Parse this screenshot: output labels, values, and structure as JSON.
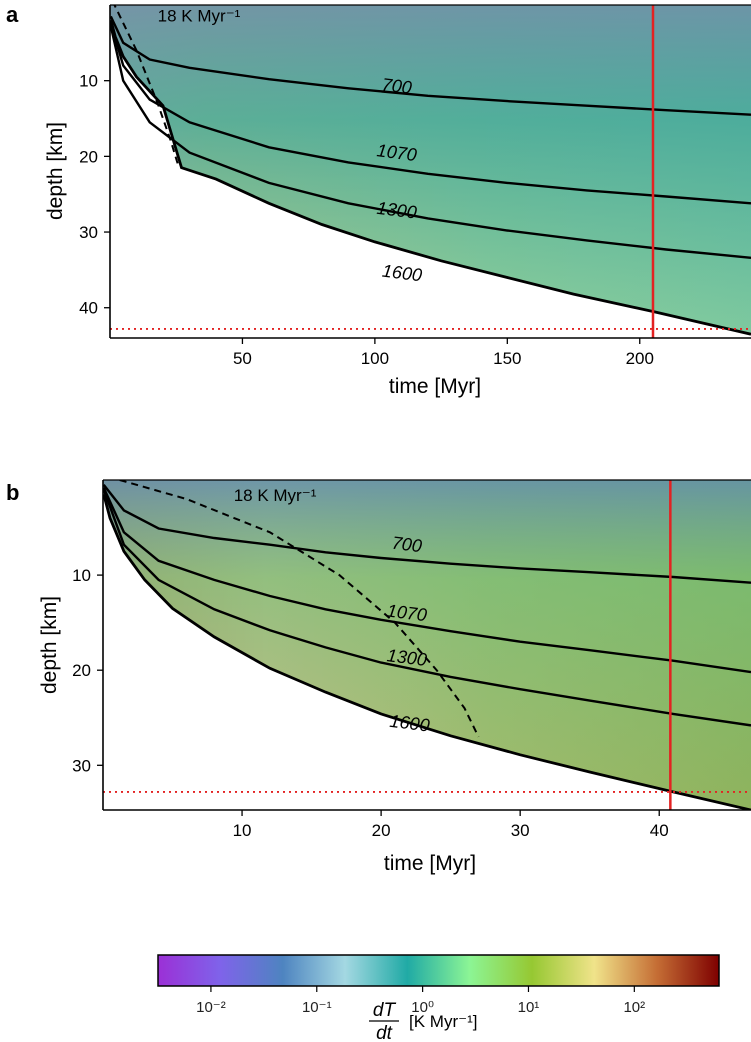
{
  "chart_data": [
    {
      "panel": "a",
      "type": "heatmap",
      "xlabel": "time [Myr]",
      "ylabel": "depth [km]",
      "x_ticks": [
        50,
        100,
        150,
        200
      ],
      "y_ticks": [
        10,
        20,
        30,
        40
      ],
      "xlim": [
        0,
        242
      ],
      "ylim": [
        44,
        0
      ],
      "y_inverted": true,
      "lithosphere_base": [
        [
          0.3,
          2
        ],
        [
          2,
          4.2
        ],
        [
          5,
          6.8
        ],
        [
          10,
          9.5
        ],
        [
          20,
          13.3
        ],
        [
          27,
          21.5
        ],
        [
          40,
          23
        ],
        [
          60,
          26.2
        ],
        [
          80,
          29
        ],
        [
          100,
          31.3
        ],
        [
          125,
          33.8
        ],
        [
          150,
          36
        ],
        [
          175,
          38.2
        ],
        [
          205,
          40.5
        ],
        [
          242,
          43.5
        ]
      ],
      "isotherms": [
        {
          "label": "700",
          "points": [
            [
              0.3,
              1.5
            ],
            [
              5,
              5
            ],
            [
              15,
              7.2
            ],
            [
              30,
              8.3
            ],
            [
              60,
              9.8
            ],
            [
              90,
              11
            ],
            [
              120,
              12
            ],
            [
              150,
              12.7
            ],
            [
              180,
              13.3
            ],
            [
              210,
              13.9
            ],
            [
              242,
              14.5
            ]
          ]
        },
        {
          "label": "1070",
          "points": [
            [
              0.3,
              2.4
            ],
            [
              5,
              8
            ],
            [
              15,
              12.5
            ],
            [
              30,
              15.5
            ],
            [
              60,
              18.8
            ],
            [
              90,
              20.8
            ],
            [
              120,
              22.3
            ],
            [
              150,
              23.5
            ],
            [
              180,
              24.5
            ],
            [
              210,
              25.3
            ],
            [
              242,
              26.2
            ]
          ]
        },
        {
          "label": "1300",
          "points": [
            [
              0.3,
              2.8
            ],
            [
              5,
              10
            ],
            [
              15,
              15.5
            ],
            [
              30,
              19.5
            ],
            [
              60,
              23.5
            ],
            [
              90,
              26.2
            ],
            [
              120,
              28.2
            ],
            [
              150,
              29.8
            ],
            [
              180,
              31.1
            ],
            [
              210,
              32.3
            ],
            [
              242,
              33.4
            ]
          ]
        }
      ],
      "base_label": "1600",
      "contour_label_positions": [
        [
          108,
          11.5
        ],
        [
          108,
          20.3
        ],
        [
          108,
          27.9
        ],
        [
          110,
          36.2
        ]
      ],
      "rate_contour": {
        "label": "18 K Myr⁻¹",
        "points": [
          [
            1,
            -0.5
          ],
          [
            10,
            6
          ],
          [
            18,
            13
          ],
          [
            23,
            18
          ],
          [
            26,
            21.5
          ]
        ]
      },
      "rate_label_position": [
        18,
        2.2
      ],
      "ref_time": 205,
      "ref_depth": 42.8
    },
    {
      "panel": "b",
      "type": "heatmap",
      "xlabel": "time [Myr]",
      "ylabel": "depth [km]",
      "x_ticks": [
        10,
        20,
        30,
        40
      ],
      "y_ticks": [
        10,
        20,
        30
      ],
      "xlim": [
        0,
        46.6
      ],
      "ylim": [
        34.7,
        0
      ],
      "y_inverted": true,
      "lithosphere_base": [
        [
          0.05,
          1.5
        ],
        [
          0.5,
          4
        ],
        [
          1.5,
          7.5
        ],
        [
          3,
          10.5
        ],
        [
          5,
          13.5
        ],
        [
          8,
          16.5
        ],
        [
          12,
          19.8
        ],
        [
          16,
          22.3
        ],
        [
          20,
          24.6
        ],
        [
          25,
          26.9
        ],
        [
          30,
          28.9
        ],
        [
          35,
          30.7
        ],
        [
          41,
          32.8
        ],
        [
          46.6,
          34.7
        ]
      ],
      "isotherms": [
        {
          "label": "700",
          "points": [
            [
              0.05,
              0.5
            ],
            [
              1.5,
              3.2
            ],
            [
              4,
              5.1
            ],
            [
              8,
              6.1
            ],
            [
              12,
              6.8
            ],
            [
              16,
              7.6
            ],
            [
              20,
              8.2
            ],
            [
              25,
              8.8
            ],
            [
              30,
              9.3
            ],
            [
              35,
              9.7
            ],
            [
              41,
              10.2
            ],
            [
              46.6,
              10.8
            ]
          ]
        },
        {
          "label": "1070",
          "points": [
            [
              0.05,
              0.8
            ],
            [
              1.5,
              5.5
            ],
            [
              4,
              8.5
            ],
            [
              8,
              10.5
            ],
            [
              12,
              12.2
            ],
            [
              16,
              13.6
            ],
            [
              20,
              14.7
            ],
            [
              25,
              15.9
            ],
            [
              30,
              17
            ],
            [
              35,
              17.9
            ],
            [
              41,
              19
            ],
            [
              46.6,
              20.2
            ]
          ]
        },
        {
          "label": "1300",
          "points": [
            [
              0.05,
              1
            ],
            [
              1.5,
              6.8
            ],
            [
              4,
              10.5
            ],
            [
              8,
              13.6
            ],
            [
              12,
              15.8
            ],
            [
              16,
              17.6
            ],
            [
              20,
              19.2
            ],
            [
              25,
              20.7
            ],
            [
              30,
              22
            ],
            [
              35,
              23.2
            ],
            [
              41,
              24.6
            ],
            [
              46.6,
              25.8
            ]
          ]
        }
      ],
      "base_label": "1600",
      "contour_label_positions": [
        [
          21.8,
          7.4
        ],
        [
          21.8,
          14.6
        ],
        [
          21.8,
          19.3
        ],
        [
          22,
          26.2
        ]
      ],
      "rate_contour": {
        "label": "18 K Myr⁻¹",
        "points": [
          [
            1.2,
            0
          ],
          [
            6,
            2
          ],
          [
            12,
            5.5
          ],
          [
            17,
            10
          ],
          [
            21,
            15
          ],
          [
            24,
            20
          ],
          [
            26,
            24
          ],
          [
            27,
            27
          ]
        ]
      },
      "rate_label_position": [
        9.4,
        2.2
      ],
      "ref_time": 40.8,
      "ref_depth": 32.8
    }
  ],
  "colorbar": {
    "label": "[K Myr⁻¹]",
    "fraction_numerator": "dT",
    "fraction_denominator": "dt",
    "log_min": -2.5,
    "log_max": 2.8,
    "tick_exponents": [
      -2,
      -1,
      0,
      1,
      2
    ],
    "tick_labels": [
      "10⁻²",
      "10⁻¹",
      "10⁰",
      "10¹",
      "10²"
    ],
    "color_stops": [
      "#9b30d6",
      "#7f63ea",
      "#4e84c0",
      "#a4d8e2",
      "#20aaa5",
      "#8cf595",
      "#96c832",
      "#f0e38a",
      "#c56e35",
      "#7e0000"
    ]
  },
  "colors": {
    "isotherm_line": "#000000",
    "reference_line": "#e32222",
    "background": "#ffffff"
  }
}
